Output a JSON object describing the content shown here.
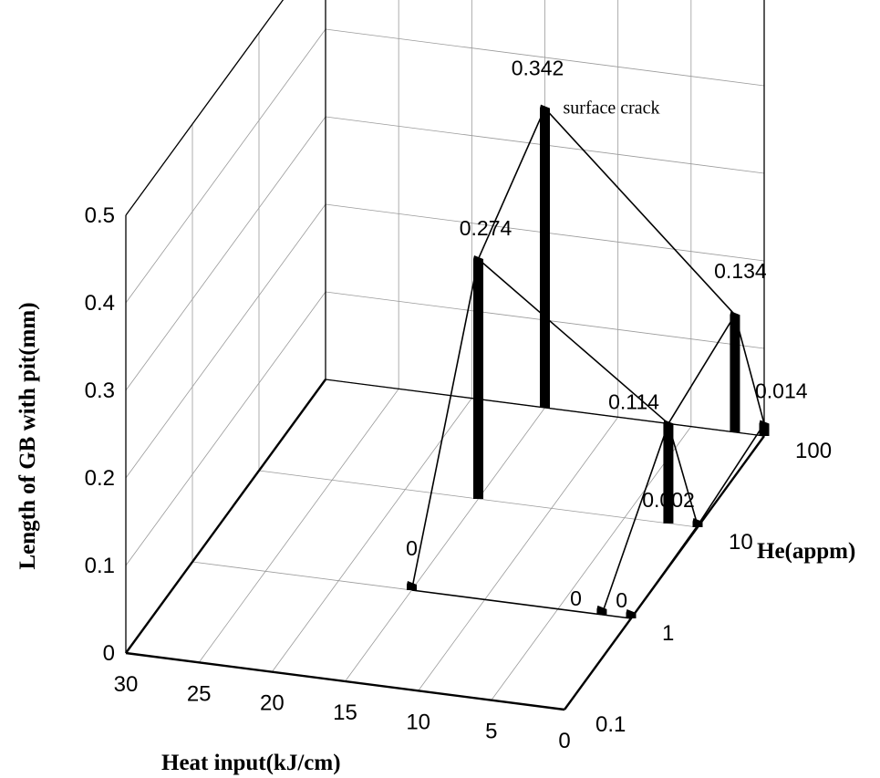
{
  "chart_data": {
    "type": "bar3d",
    "title": "",
    "xlabel": "Heat input(kJ/cm)",
    "ylabel": "He(appm)",
    "zlabel": "Length of GB with pit(mm)",
    "x_ticks": [
      "30",
      "25",
      "20",
      "15",
      "10",
      "5",
      "0"
    ],
    "y_ticks": [
      "0.1",
      "1",
      "10",
      "100"
    ],
    "z_ticks": [
      "0",
      "0.1",
      "0.2",
      "0.3",
      "0.4",
      "0.5"
    ],
    "xlim": [
      0,
      30
    ],
    "ylim": [
      0.1,
      100
    ],
    "y_scale": "log",
    "zlim": [
      0,
      0.5
    ],
    "grid": true,
    "points": [
      {
        "heat_input": 15,
        "he": 1,
        "value": 0,
        "label": "0"
      },
      {
        "heat_input": 15,
        "he": 10,
        "value": 0.274,
        "label": "0.274"
      },
      {
        "heat_input": 15,
        "he": 100,
        "value": 0.342,
        "label": "0.342"
      },
      {
        "heat_input": 2,
        "he": 1,
        "value": 0,
        "label": "0"
      },
      {
        "heat_input": 2,
        "he": 10,
        "value": 0.114,
        "label": "0.114"
      },
      {
        "heat_input": 2,
        "he": 100,
        "value": 0.134,
        "label": "0.134"
      },
      {
        "heat_input": 0,
        "he": 1,
        "value": 0,
        "label": "0"
      },
      {
        "heat_input": 0,
        "he": 10,
        "value": 0.002,
        "label": "0.002"
      },
      {
        "heat_input": 0,
        "he": 100,
        "value": 0.014,
        "label": "0.014"
      }
    ],
    "annotations": [
      {
        "text": "surface crack",
        "near_point": 2
      }
    ]
  }
}
